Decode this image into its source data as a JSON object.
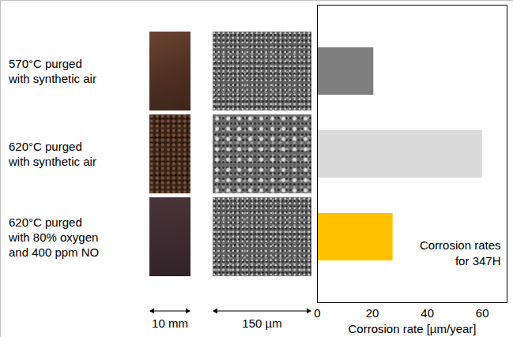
{
  "chart_data": {
    "type": "bar",
    "orientation": "horizontal",
    "categories": [
      "570°C purged with synthetic air",
      "620°C purged with synthetic air",
      "620°C purged with 80% oxygen and 400 ppm NO"
    ],
    "values": [
      20.5,
      60,
      27.5
    ],
    "colors": [
      "#7f7f7f",
      "#d9d9d9",
      "#ffc000"
    ],
    "x_label": "Corrosion rate [µm/year]",
    "xlim": [
      0,
      69
    ],
    "xticks": [
      0,
      20,
      40,
      60
    ],
    "annotation": "Corrosion rates for 347H",
    "scale_labels": [
      "10 mm",
      "150 µm"
    ],
    "grid": false
  }
}
